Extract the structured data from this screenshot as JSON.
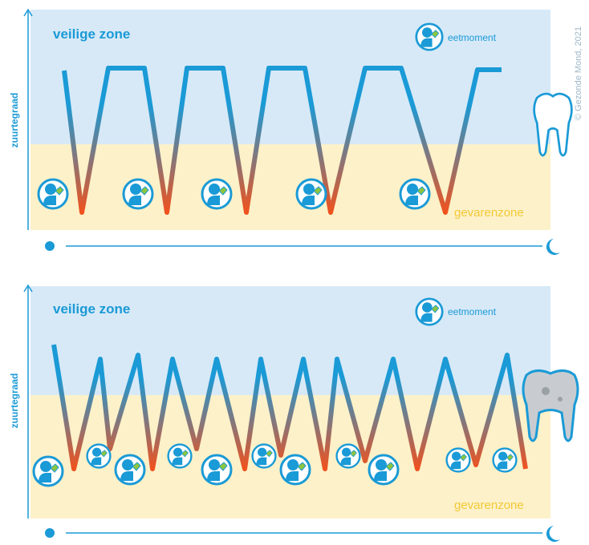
{
  "panels": [
    {
      "safe_zone": "veilige zone",
      "legend": "eetmoment",
      "danger_zone": "gevarenzone",
      "y_axis": "zuurtegraad"
    },
    {
      "safe_zone": "veilige zone",
      "legend": "eetmoment",
      "danger_zone": "gevarenzone",
      "y_axis": "zuurtegraad"
    }
  ],
  "copyright": "© Gezonde Mond, 2021"
}
